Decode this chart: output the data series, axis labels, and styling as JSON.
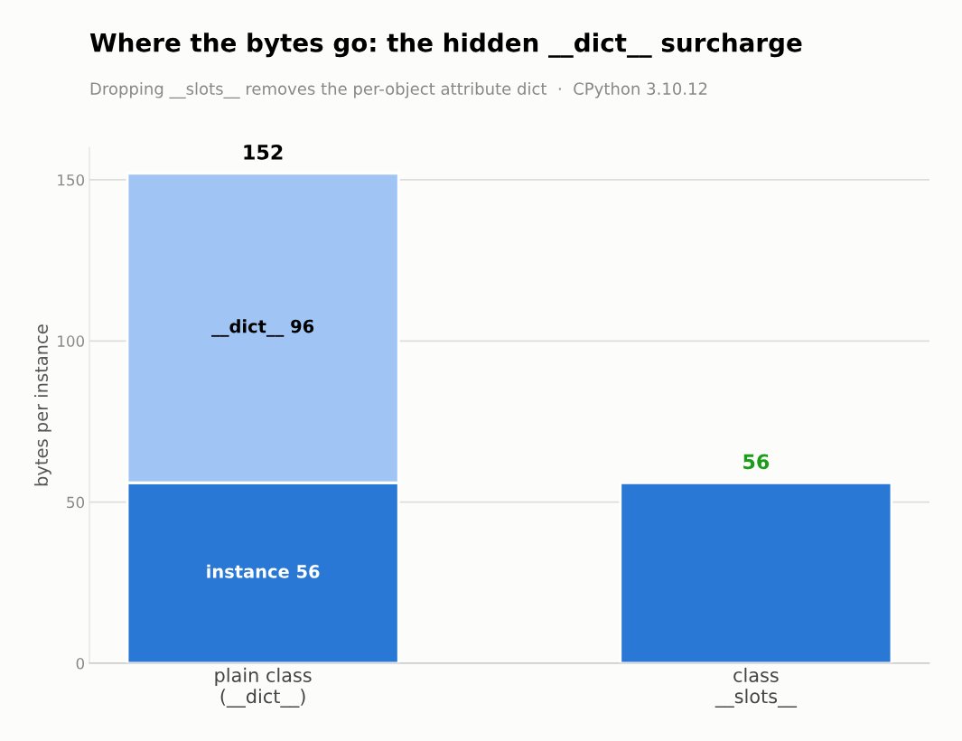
{
  "chart_data": {
    "type": "bar",
    "stacked": true,
    "title": "Where the bytes go: the hidden __dict__ surcharge",
    "subtitle": "Dropping __slots__ removes the per-object attribute dict  ·  CPython 3.10.12",
    "ylabel": "bytes per instance",
    "categories": [
      "plain class\n(__dict__)",
      "class\n__slots__"
    ],
    "series": [
      {
        "color": "#2a78d6",
        "values": [
          56,
          56
        ],
        "value_labels": [
          "instance 56",
          null
        ]
      },
      {
        "color": "#a0c4f4",
        "values": [
          96,
          null
        ],
        "value_labels": [
          "__dict__ 96",
          null
        ]
      }
    ],
    "totals": [
      "152",
      "56"
    ],
    "ylim": [
      0,
      160
    ],
    "yticks": [
      0,
      50,
      100,
      150
    ],
    "grid": "y"
  }
}
